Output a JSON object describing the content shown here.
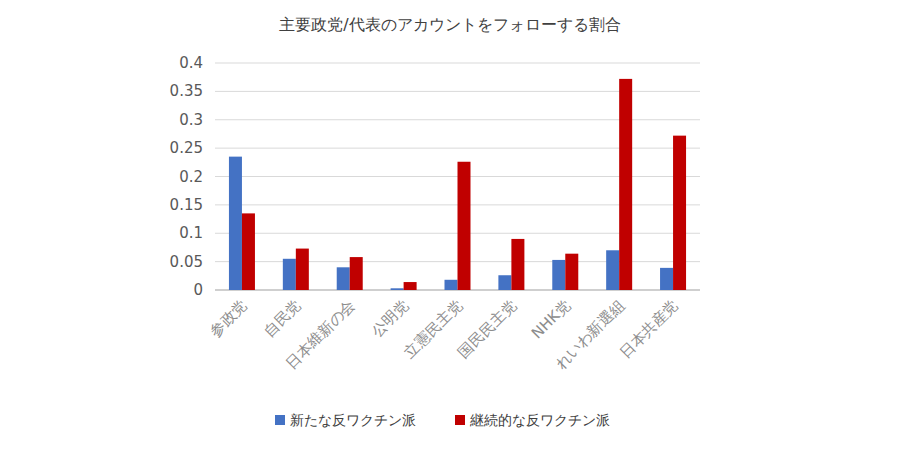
{
  "chart_data": {
    "type": "bar",
    "title": "主要政党/代表のアカウントをフォローする割合",
    "categories": [
      "参政党",
      "自民党",
      "日本維新の会",
      "公明党",
      "立憲民主党",
      "国民民主党",
      "NHK党",
      "れいわ新選組",
      "日本共産党"
    ],
    "series": [
      {
        "name": "新たな反ワクチン派",
        "color": "#4472c4",
        "values": [
          0.235,
          0.055,
          0.04,
          0.003,
          0.018,
          0.026,
          0.053,
          0.07,
          0.039
        ]
      },
      {
        "name": "継続的な反ワクチン派",
        "color": "#c00000",
        "values": [
          0.135,
          0.073,
          0.058,
          0.014,
          0.226,
          0.09,
          0.064,
          0.372,
          0.272
        ]
      }
    ],
    "ylim": [
      0,
      0.4
    ],
    "yticks": [
      0,
      0.05,
      0.1,
      0.15,
      0.2,
      0.25,
      0.3,
      0.35,
      0.4
    ],
    "grid": true,
    "legend": "bottom"
  }
}
